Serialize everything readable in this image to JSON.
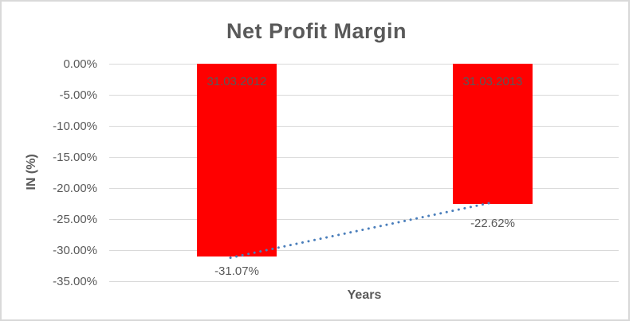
{
  "chart_data": {
    "type": "bar",
    "title": "Net Profit Margin",
    "xlabel": "Years",
    "ylabel": "IN (%)",
    "categories": [
      "31.03.2012",
      "31.03.2013"
    ],
    "values": [
      -31.07,
      -22.62
    ],
    "value_labels": [
      "-31.07%",
      "-22.62%"
    ],
    "yticks": [
      "0.00%",
      "-5.00%",
      "-10.00%",
      "-15.00%",
      "-20.00%",
      "-25.00%",
      "-30.00%",
      "-35.00%"
    ],
    "ytick_values": [
      0,
      -5,
      -10,
      -15,
      -20,
      -25,
      -30,
      -35
    ],
    "ylim": [
      -35,
      0
    ],
    "grid": true,
    "legend": false,
    "bar_color": "#FF0000",
    "label_color": "#595959",
    "gridline_color": "#D9D9D9",
    "trendline": {
      "type": "linear",
      "style": "dotted",
      "color": "#4A7EBB",
      "from_value": -31.07,
      "to_value": -22.62
    }
  }
}
